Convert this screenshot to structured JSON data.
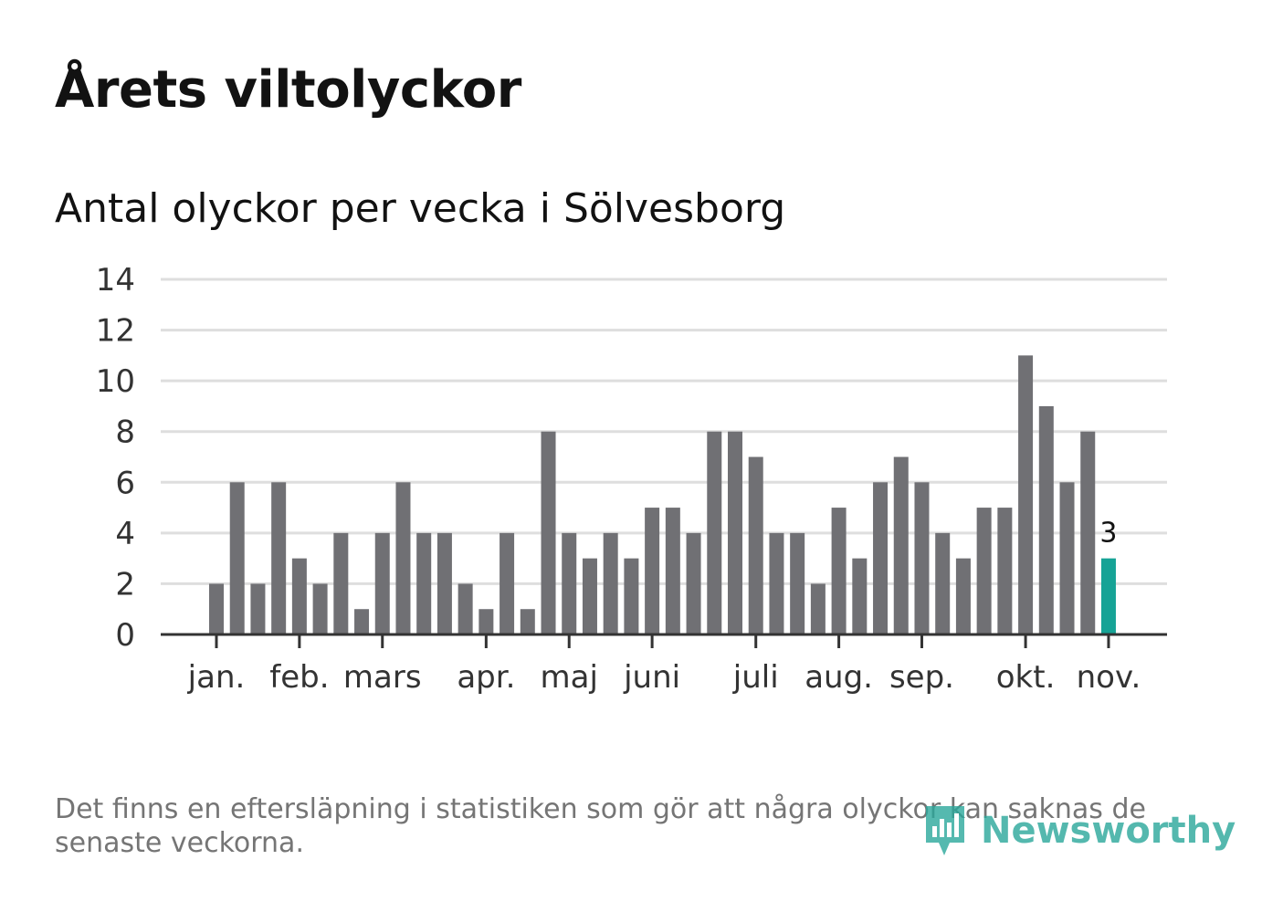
{
  "title": "Årets viltolyckor",
  "subtitle": "Antal olyckor per vecka i Sölvesborg",
  "footnote": "Det finns en eftersläpning i statistiken som gör att några olyckor kan saknas de senaste veckorna.",
  "logo": {
    "name": "Newsworthy"
  },
  "colors": {
    "bar": "#707074",
    "highlight": "#16a396",
    "grid": "#dedede",
    "axis": "#333333",
    "text": "#333333"
  },
  "chart_data": {
    "type": "bar",
    "title": "Antal olyckor per vecka i Sölvesborg",
    "xlabel": "",
    "ylabel": "",
    "ylim": [
      0,
      14
    ],
    "yticks": [
      0,
      2,
      4,
      6,
      8,
      10,
      12,
      14
    ],
    "grid": true,
    "values": [
      2,
      6,
      2,
      6,
      3,
      2,
      4,
      1,
      4,
      6,
      4,
      4,
      2,
      1,
      4,
      1,
      8,
      4,
      3,
      4,
      3,
      5,
      5,
      4,
      8,
      8,
      7,
      4,
      4,
      2,
      5,
      3,
      6,
      7,
      6,
      4,
      3,
      5,
      5,
      11,
      9,
      6,
      8,
      3
    ],
    "highlight_index": 43,
    "highlight_label": "3",
    "months": [
      {
        "label": "jan.",
        "week_index": 0
      },
      {
        "label": "feb.",
        "week_index": 4
      },
      {
        "label": "mars",
        "week_index": 8
      },
      {
        "label": "apr.",
        "week_index": 13
      },
      {
        "label": "maj",
        "week_index": 17
      },
      {
        "label": "juni",
        "week_index": 21
      },
      {
        "label": "juli",
        "week_index": 26
      },
      {
        "label": "aug.",
        "week_index": 30
      },
      {
        "label": "sep.",
        "week_index": 34
      },
      {
        "label": "okt.",
        "week_index": 39
      },
      {
        "label": "nov.",
        "week_index": 43
      }
    ]
  }
}
